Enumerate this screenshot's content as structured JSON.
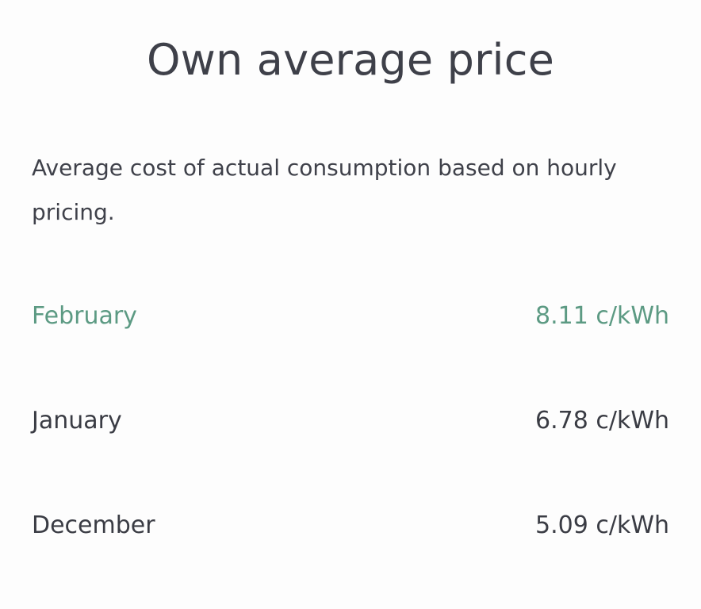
{
  "header": {
    "title": "Own average price"
  },
  "description": "Average cost of actual consumption based on hourly pricing.",
  "prices": [
    {
      "month": "February",
      "price": "8.11 c/kWh",
      "highlighted": true
    },
    {
      "month": "January",
      "price": "6.78 c/kWh",
      "highlighted": false
    },
    {
      "month": "December",
      "price": "5.09 c/kWh",
      "highlighted": false
    }
  ],
  "colors": {
    "accent": "#5c9a83",
    "text": "#3a3c44",
    "background": "#fdfdfd"
  }
}
